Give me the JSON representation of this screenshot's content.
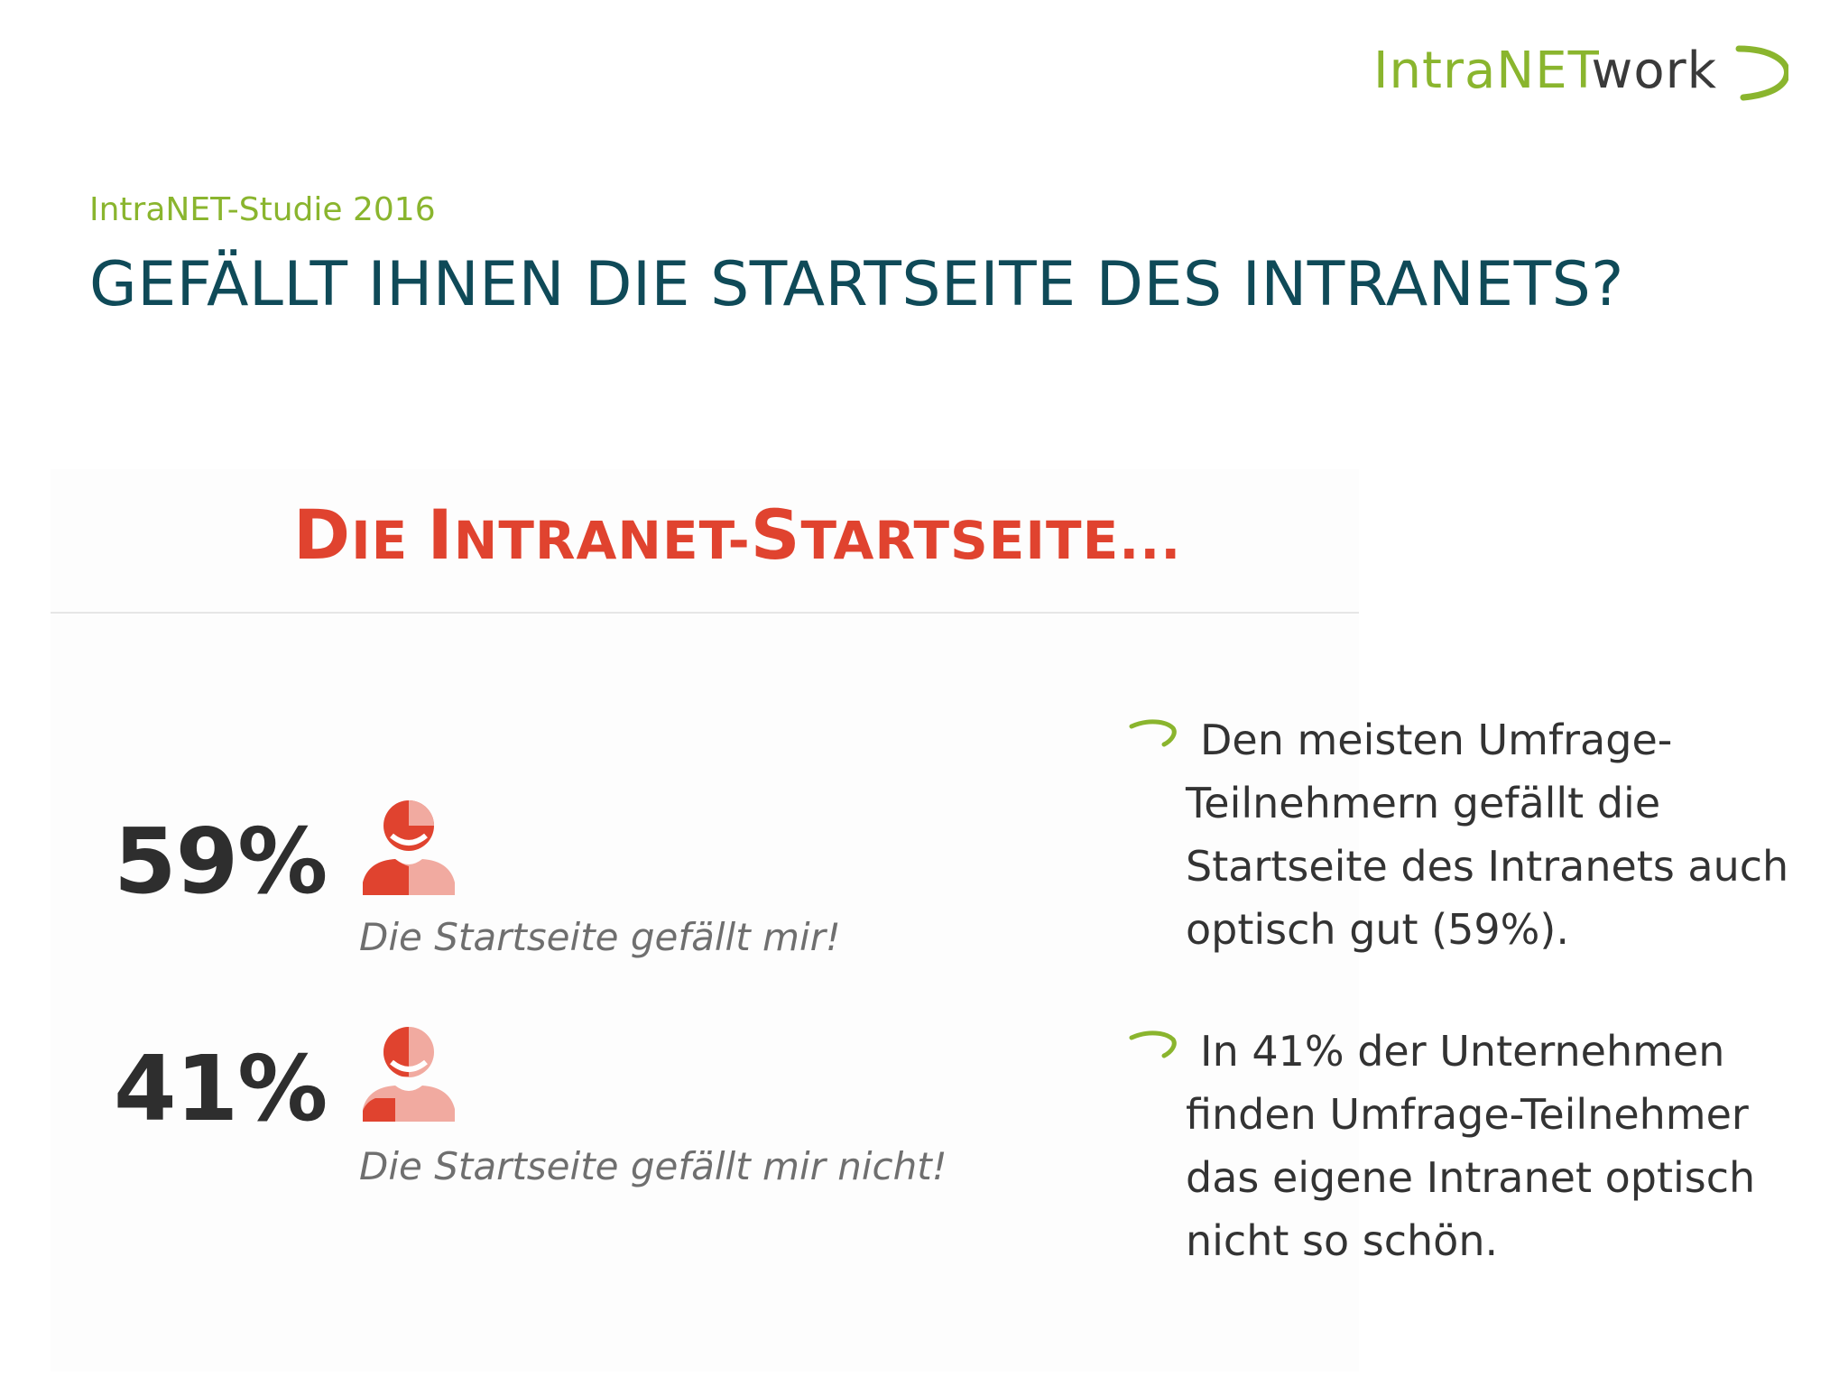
{
  "header": {
    "logo_part1": "IntraNET",
    "logo_part2": "work",
    "subtitle": "IntraNET-Studie 2016",
    "title": "GEFÄLLT IHNEN DIE STARTSEITE DES INTRANETS?"
  },
  "infographic": {
    "heading_parts": [
      "D",
      "IE ",
      "I",
      "NTRANET-",
      "S",
      "TARTSEITE..."
    ],
    "stats": [
      {
        "percent": "59%",
        "caption": "Die Startseite gefällt mir!"
      },
      {
        "percent": "41%",
        "caption": "Die Startseite gefällt mir nicht!"
      }
    ]
  },
  "bullets": [
    {
      "lines": [
        "Den meisten Umfrage-",
        "Teilnehmern gefällt die",
        "Startseite des Intranets auch",
        "optisch gut (59%)."
      ]
    },
    {
      "lines": [
        "In 41% der Unternehmen",
        "finden Umfrage-Teilnehmer",
        "das eigene Intranet optisch",
        "nicht so schön."
      ]
    }
  ],
  "colors": {
    "accent_green": "#8ab52e",
    "title_teal": "#0f4a58",
    "heading_red": "#e0432f",
    "person_dark": "#e0432f",
    "person_light": "#f1aaa0"
  }
}
